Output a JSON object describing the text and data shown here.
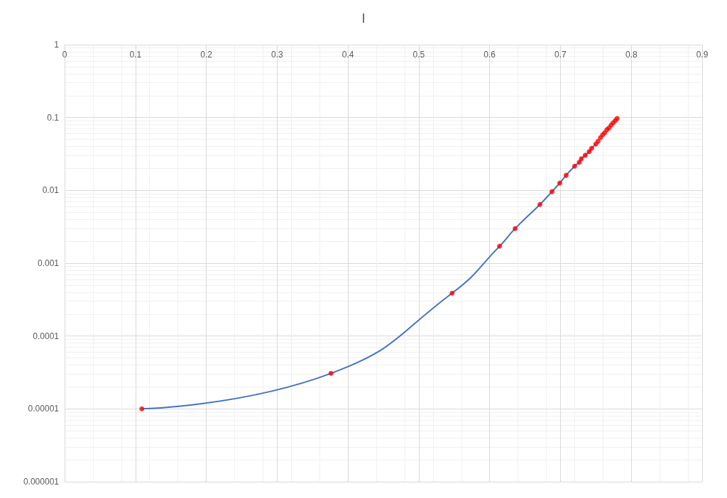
{
  "chart_data": {
    "type": "line",
    "title": "I",
    "x": [
      0.109,
      0.376,
      0.547,
      0.614,
      0.636,
      0.671,
      0.688,
      0.699,
      0.708,
      0.72,
      0.7265,
      0.7295,
      0.735,
      0.7405,
      0.744,
      0.75,
      0.753,
      0.7565,
      0.7595,
      0.7625,
      0.7655,
      0.7685,
      0.7715,
      0.7745,
      0.7775,
      0.78
    ],
    "series": [
      {
        "color": "#4472c4",
        "marker": "none",
        "values": [
          1e-05,
          3.07e-05,
          0.000388,
          0.00171,
          0.00299,
          0.0064,
          0.0096,
          0.0126,
          0.0161,
          0.0215,
          0.0243,
          0.0272,
          0.0303,
          0.034,
          0.0378,
          0.0432,
          null,
          null,
          null,
          null,
          null,
          null,
          null,
          null,
          null,
          null
        ]
      },
      {
        "type": "scatter",
        "color": "#ff0000",
        "marker": "circle",
        "values": [
          1e-05,
          3.07e-05,
          0.000388,
          0.00171,
          0.00299,
          0.0064,
          0.0096,
          0.0126,
          0.0161,
          0.0215,
          0.0243,
          0.0272,
          0.0303,
          0.034,
          0.0378,
          0.0432,
          0.0472,
          0.053,
          0.058,
          0.062,
          0.068,
          0.072,
          0.079,
          0.085,
          0.091,
          0.097
        ]
      }
    ],
    "xlim": [
      0,
      0.9
    ],
    "xticks": [
      0,
      0.1,
      0.2,
      0.3,
      0.4,
      0.5,
      0.6,
      0.7,
      0.8,
      0.9
    ],
    "ylim": [
      1e-06,
      1
    ],
    "yticks": [
      {
        "value": 1e-06,
        "label": "0.000001"
      },
      {
        "value": 1e-05,
        "label": "0.00001"
      },
      0.0001,
      0.001,
      0.01,
      0.1,
      1
    ],
    "log": "y",
    "grid": true
  }
}
